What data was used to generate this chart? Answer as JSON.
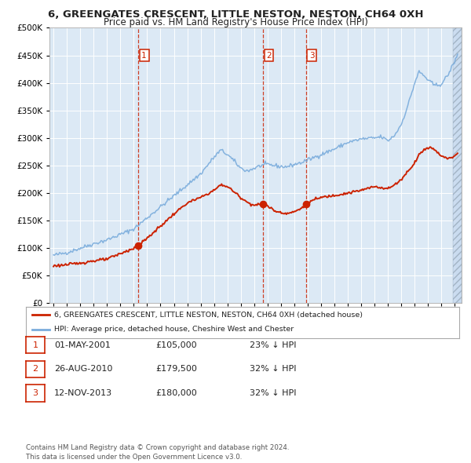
{
  "title": "6, GREENGATES CRESCENT, LITTLE NESTON, NESTON, CH64 0XH",
  "subtitle": "Price paid vs. HM Land Registry's House Price Index (HPI)",
  "background_color": "#ffffff",
  "plot_bg_color": "#dce9f5",
  "grid_color": "#ffffff",
  "hpi_line_color": "#7aacdc",
  "price_line_color": "#cc2200",
  "sale_marker_color": "#cc2200",
  "vline_color": "#cc2200",
  "ylim": [
    0,
    500000
  ],
  "yticks": [
    0,
    50000,
    100000,
    150000,
    200000,
    250000,
    300000,
    350000,
    400000,
    450000,
    500000
  ],
  "ytick_labels": [
    "£0",
    "£50K",
    "£100K",
    "£150K",
    "£200K",
    "£250K",
    "£300K",
    "£350K",
    "£400K",
    "£450K",
    "£500K"
  ],
  "xlim_start": 1994.7,
  "xlim_end": 2025.5,
  "xticks": [
    1995,
    1996,
    1997,
    1998,
    1999,
    2000,
    2001,
    2002,
    2003,
    2004,
    2005,
    2006,
    2007,
    2008,
    2009,
    2010,
    2011,
    2012,
    2013,
    2014,
    2015,
    2016,
    2017,
    2018,
    2019,
    2020,
    2021,
    2022,
    2023,
    2024,
    2025
  ],
  "sales": [
    {
      "date_num": 2001.33,
      "price": 105000,
      "label": "1"
    },
    {
      "date_num": 2010.65,
      "price": 179500,
      "label": "2"
    },
    {
      "date_num": 2013.87,
      "price": 180000,
      "label": "3"
    }
  ],
  "legend_house_label": "6, GREENGATES CRESCENT, LITTLE NESTON, NESTON, CH64 0XH (detached house)",
  "legend_hpi_label": "HPI: Average price, detached house, Cheshire West and Chester",
  "table_rows": [
    {
      "num": "1",
      "date": "01-MAY-2001",
      "price": "£105,000",
      "hpi": "23% ↓ HPI"
    },
    {
      "num": "2",
      "date": "26-AUG-2010",
      "price": "£179,500",
      "hpi": "32% ↓ HPI"
    },
    {
      "num": "3",
      "date": "12-NOV-2013",
      "price": "£180,000",
      "hpi": "32% ↓ HPI"
    }
  ],
  "footnote": "Contains HM Land Registry data © Crown copyright and database right 2024.\nThis data is licensed under the Open Government Licence v3.0.",
  "title_fontsize": 9.5,
  "subtitle_fontsize": 8.5
}
